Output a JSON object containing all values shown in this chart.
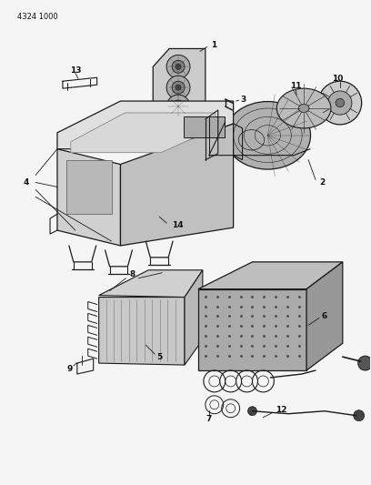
{
  "doc_number": "4324 1000",
  "background_color": "#f5f5f5",
  "line_color": "#1a1a1a",
  "text_color": "#111111",
  "fig_width": 4.08,
  "fig_height": 5.33,
  "dpi": 100
}
